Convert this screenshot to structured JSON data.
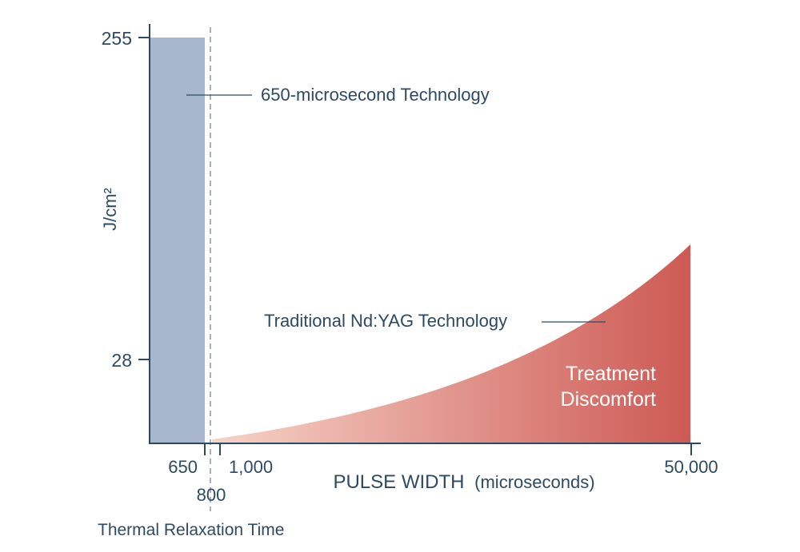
{
  "chart_data": {
    "type": "area",
    "ylabel": "J/cm²",
    "xlabel_main": "PULSE WIDTH",
    "xlabel_unit": "(microseconds)",
    "x_ticks": [
      "650",
      "800",
      "1,000",
      "50,000"
    ],
    "y_ticks": [
      "255",
      "28"
    ],
    "series": [
      {
        "name": "650-microsecond Technology",
        "kind": "bar",
        "x_range": [
          0,
          650
        ],
        "value": 255,
        "color": "#a7b7ce"
      },
      {
        "name": "Traditional Nd:YAG Technology",
        "kind": "area",
        "x_range": [
          800,
          50000
        ],
        "value_start": 0,
        "value_end": 132,
        "gradient": [
          "#f6d3c8",
          "#cd5a54"
        ]
      }
    ],
    "marker": {
      "x": 800,
      "label": "Thermal Relaxation Time"
    },
    "annotation": {
      "line1": "Treatment",
      "line2": "Discomfort"
    },
    "colors": {
      "text": "#2e4a63",
      "axis": "#2e4a63",
      "bar": "#a7b7ce",
      "area_light": "#f6d3c8",
      "area_dark": "#cd5a54",
      "dashed": "#8a96a6"
    }
  }
}
